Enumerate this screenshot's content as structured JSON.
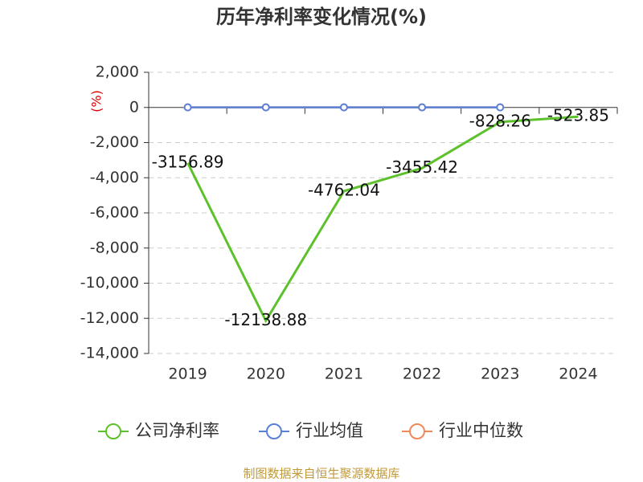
{
  "chart_data": {
    "type": "line",
    "title": "历年净利率变化情况(%)",
    "y_label": "(%)",
    "categories": [
      "2019",
      "2020",
      "2021",
      "2022",
      "2023",
      "2024"
    ],
    "series": [
      {
        "name": "公司净利率",
        "color": "#5cc12a",
        "values": [
          -3156.89,
          -12138.88,
          -4762.04,
          -3455.42,
          -828.26,
          -523.85
        ]
      },
      {
        "name": "行业均值",
        "color": "#5b80d8",
        "values": [
          5,
          5,
          5,
          5,
          5,
          null
        ]
      },
      {
        "name": "行业中位数",
        "color": "#f0895a",
        "values": [
          5,
          5,
          5,
          5,
          5,
          null
        ]
      }
    ],
    "ylim": [
      -14000,
      2000
    ],
    "yticks": [
      {
        "value": -14000,
        "label": "-14,000"
      },
      {
        "value": -12000,
        "label": "-12,000"
      },
      {
        "value": -10000,
        "label": "-10,000"
      },
      {
        "value": -8000,
        "label": "-8,000"
      },
      {
        "value": -6000,
        "label": "-6,000"
      },
      {
        "value": -4000,
        "label": "-4,000"
      },
      {
        "value": -2000,
        "label": "-2,000"
      },
      0,
      {
        "value": 2000,
        "label": "2,000"
      }
    ],
    "grid": true,
    "source": "制图数据来自恒生聚源数据库"
  }
}
